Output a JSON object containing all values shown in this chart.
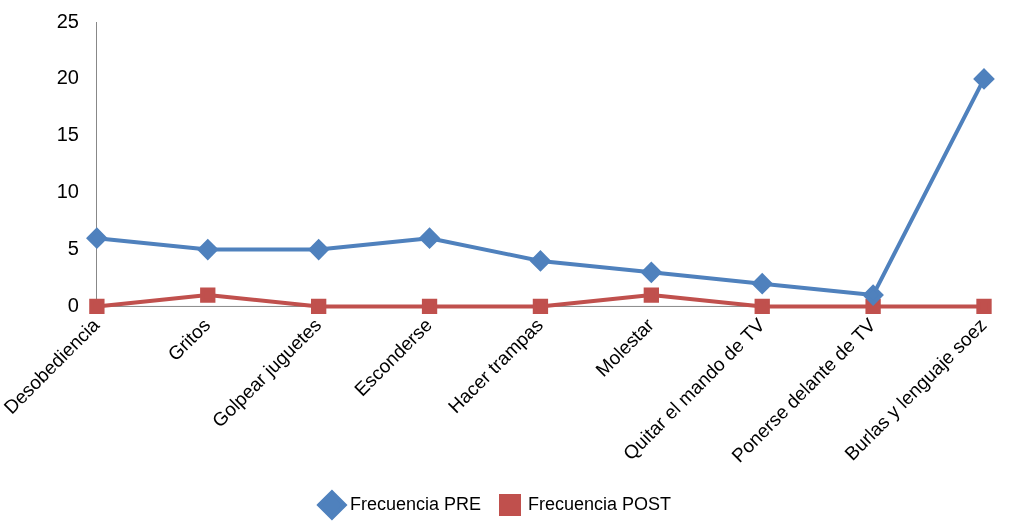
{
  "chart_data": {
    "type": "line",
    "categories": [
      "Desobediencia",
      "Gritos",
      "Golpear juguetes",
      "Esconderse",
      "Hacer trampas",
      "Molestar",
      "Quitar el mando de TV",
      "Ponerse delante de TV",
      "Burlas y lenguaje soez"
    ],
    "series": [
      {
        "name": "Frecuencia PRE",
        "color": "#4f81bd",
        "marker": "diamond",
        "values": [
          6,
          5,
          5,
          6,
          4,
          3,
          2,
          1,
          20
        ]
      },
      {
        "name": "Frecuencia POST",
        "color": "#c0504d",
        "marker": "square",
        "values": [
          0,
          1,
          0,
          0,
          0,
          1,
          0,
          0,
          0
        ]
      }
    ],
    "ylim": [
      0,
      25
    ],
    "yticks": [
      0,
      5,
      10,
      15,
      20,
      25
    ],
    "grid": false,
    "legend": "bottom",
    "line_style": "solid"
  }
}
